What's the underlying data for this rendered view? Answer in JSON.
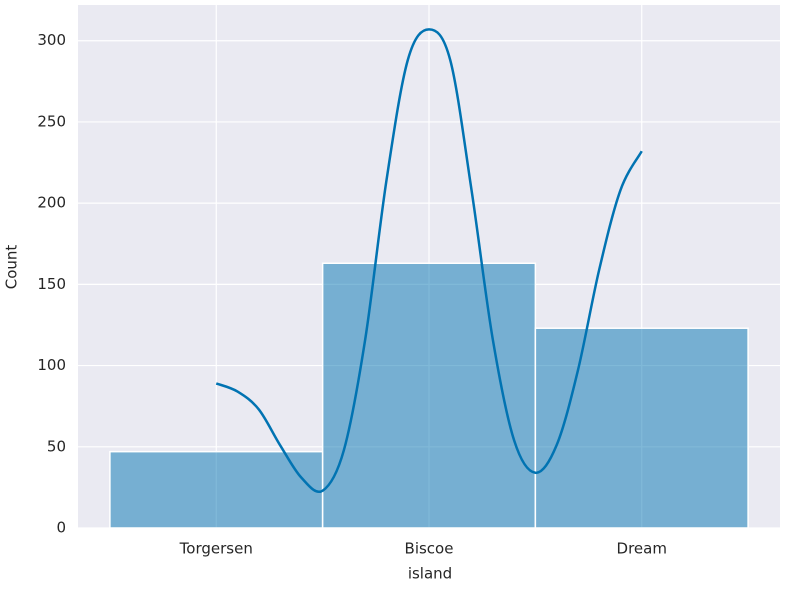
{
  "chart_data": {
    "type": "histogram",
    "xlabel": "island",
    "ylabel": "Count",
    "categories": [
      "Torgersen",
      "Biscoe",
      "Dream"
    ],
    "values": [
      47,
      163,
      123
    ],
    "color": "#0173b2",
    "kde": {
      "x": [
        0,
        0.1,
        0.2,
        0.3,
        0.4,
        0.5,
        0.6,
        0.7,
        0.8,
        0.9,
        1.0,
        1.1,
        1.2,
        1.3,
        1.4,
        1.5,
        1.6,
        1.7,
        1.8,
        1.9,
        2.0
      ],
      "values": [
        89,
        84,
        73,
        51,
        31,
        23,
        48,
        116,
        214,
        288,
        307,
        288,
        208,
        116,
        54,
        34,
        51,
        97,
        159,
        208,
        232
      ],
      "color": "#0173b2"
    },
    "xlim": [
      -0.65,
      2.65
    ],
    "ylim": [
      0,
      322
    ],
    "yticks": [
      0,
      50,
      100,
      150,
      200,
      250,
      300
    ],
    "grid": true
  }
}
